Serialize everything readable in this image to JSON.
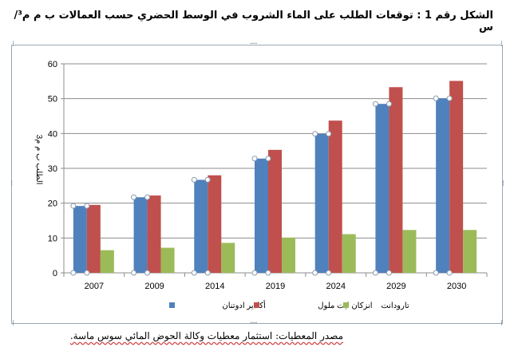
{
  "figure": {
    "title": "الشكل رقم 1 : توقعات الطلب على الماء الشروب في الوسط الحضري حسب العمالات ب م م³/س",
    "source_note": "مصدر المعطيات: استثمار معطيات وكالة الحوض المائي سوس ماسة."
  },
  "chart_data": {
    "type": "bar",
    "categories": [
      "2007",
      "2009",
      "2014",
      "2019",
      "2024",
      "2029",
      "2030"
    ],
    "series": [
      {
        "name": "أكادير ادوتنان",
        "color": "#4f81bd",
        "values": [
          19.2,
          21.7,
          26.7,
          32.8,
          39.9,
          48.5,
          50.1
        ]
      },
      {
        "name": "انزكان ايت ملول",
        "color": "#c0504d",
        "values": [
          19.5,
          22.2,
          28.0,
          35.3,
          43.7,
          53.3,
          55.1
        ]
      },
      {
        "name": "تارودانت",
        "color": "#9bbb59",
        "values": [
          6.5,
          7.2,
          8.6,
          10.1,
          11.1,
          12.3,
          12.3
        ]
      }
    ],
    "ylabel": "الطلب ب م م3",
    "xlabel": "",
    "ylim": [
      0,
      60
    ],
    "yticks": [
      0,
      10,
      20,
      30,
      40,
      50,
      60
    ],
    "grid": true,
    "legend_position": "bottom"
  }
}
